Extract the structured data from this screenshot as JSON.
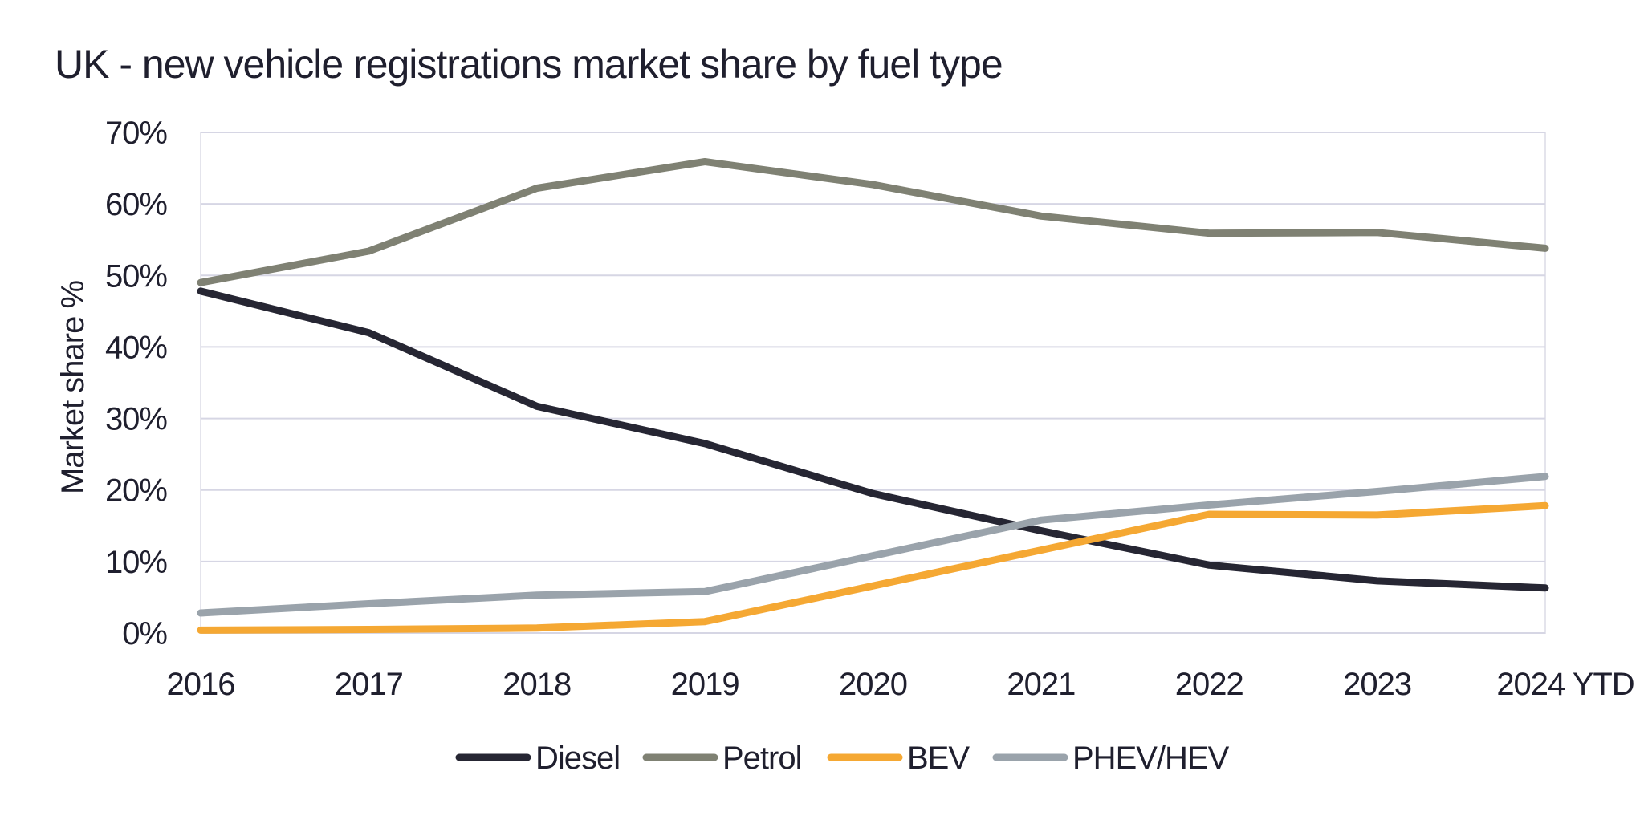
{
  "chart_data": {
    "type": "line",
    "title": "UK - new vehicle registrations market share by fuel type",
    "xlabel": "",
    "ylabel": "Market share %",
    "categories": [
      "2016",
      "2017",
      "2018",
      "2019",
      "2020",
      "2021",
      "2022",
      "2023",
      "2024 YTD"
    ],
    "ylim": [
      0,
      70
    ],
    "yticks": [
      0,
      10,
      20,
      30,
      40,
      50,
      60,
      70
    ],
    "ytick_labels": [
      "0%",
      "10%",
      "20%",
      "30%",
      "40%",
      "50%",
      "60%",
      "70%"
    ],
    "grid": true,
    "legend_position": "bottom",
    "series": [
      {
        "name": "Diesel",
        "color": "#262633",
        "values": [
          47.8,
          42.0,
          31.7,
          26.5,
          19.5,
          14.3,
          9.5,
          7.3,
          6.3
        ]
      },
      {
        "name": "Petrol",
        "color": "#7f8173",
        "values": [
          49.0,
          53.4,
          62.2,
          65.9,
          62.7,
          58.3,
          55.9,
          56.0,
          53.8
        ]
      },
      {
        "name": "BEV",
        "color": "#f5a833",
        "values": [
          0.4,
          0.5,
          0.7,
          1.6,
          6.6,
          11.6,
          16.6,
          16.5,
          17.8
        ]
      },
      {
        "name": "PHEV/HEV",
        "color": "#9aa3ab",
        "values": [
          2.8,
          4.1,
          5.3,
          5.8,
          10.8,
          15.8,
          17.9,
          19.8,
          21.9
        ]
      }
    ]
  }
}
